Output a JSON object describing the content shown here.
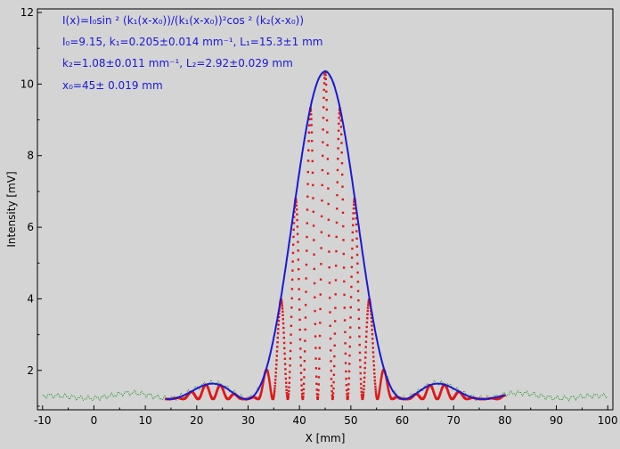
{
  "chart_data": {
    "type": "line",
    "xlabel": "X [mm]",
    "ylabel": "Intensity [mV]",
    "xlim": [
      -11,
      101
    ],
    "ylim": [
      0.9,
      12.1
    ],
    "x_ticks": [
      -10,
      0,
      10,
      20,
      30,
      40,
      50,
      60,
      70,
      80,
      90,
      100
    ],
    "y_ticks": [
      2,
      4,
      6,
      8,
      10,
      12
    ],
    "grid": false,
    "annotations": [
      "I(x)=I₀sin ² (k₁(x-x₀))/(k₁(x-x₀))²cos ² (k₂(x-x₀))",
      "I₀=9.15,  k₁=0.205±0.014 mm⁻¹,   L₁=15.3±1 mm",
      "k₂=1.08±0.011 mm⁻¹,   L₂=2.92±0.029 mm",
      "x₀=45±  0.019 mm"
    ],
    "model": {
      "I0": 9.15,
      "k1": 0.205,
      "k2": 1.08,
      "x0": 45,
      "baseline": 1.2
    },
    "series": [
      {
        "style": "green-dotted",
        "color": "#138a13",
        "x_range": [
          -10,
          100
        ]
      },
      {
        "style": "red-dotted",
        "color": "#e01818",
        "x_range": [
          14,
          80
        ]
      },
      {
        "style": "blue-line",
        "color": "#1a1ad6",
        "x_range": [
          14,
          80
        ]
      }
    ]
  }
}
